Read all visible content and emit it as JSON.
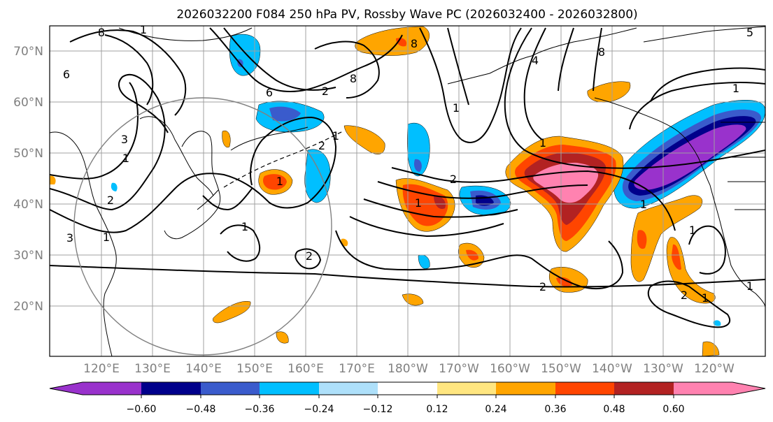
{
  "title": "2026032200 F084 250 hPa PV, Rossby Wave PC (2026032400 - 2026032800)",
  "latitude_labels": [
    "70°N",
    "60°N",
    "50°N",
    "40°N",
    "30°N",
    "20°N"
  ],
  "longitude_labels": [
    "120°E",
    "130°E",
    "140°E",
    "150°E",
    "160°E",
    "170°E",
    "180°W",
    "170°W",
    "160°W",
    "150°W",
    "140°W",
    "130°W",
    "120°W"
  ],
  "contour_labels": [
    "8",
    "1",
    "6",
    "1",
    "8",
    "4",
    "8",
    "8",
    "5",
    "6",
    "2",
    "1",
    "2",
    "1",
    "3",
    "2",
    "1",
    "3",
    "1",
    "1",
    "2",
    "1",
    "2",
    "1",
    "1",
    "1",
    "2",
    "2",
    "1",
    "1",
    "1"
  ],
  "colorbar": {
    "tick_labels": [
      "−0.60",
      "−0.48",
      "−0.36",
      "−0.24",
      "−0.12",
      "0.12",
      "0.24",
      "0.36",
      "0.48",
      "0.60"
    ],
    "colors": [
      "#9932cc",
      "#00008b",
      "#3a5bcc",
      "#00bfff",
      "#aee0fa",
      "#ffffff",
      "#ffe680",
      "#ffa500",
      "#ff4500",
      "#b22222",
      "#ff82b0"
    ]
  },
  "colors": {
    "contour": "#000000",
    "grid": "#a0a0a0",
    "axis_label": "#808080",
    "circle": "#808080"
  }
}
